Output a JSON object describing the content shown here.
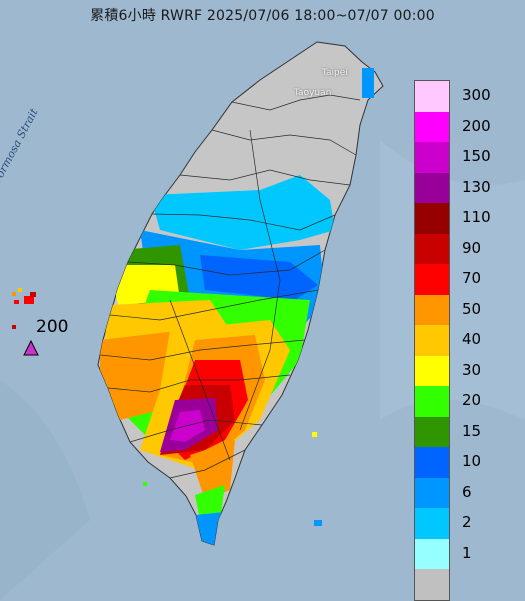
{
  "title": "累積6小時 RWRF 2025/07/06 18:00~07/07 00:00",
  "places": {
    "taipei": "Taipei",
    "taoyuan": "Taoyuan",
    "strait": "Formosa Strait"
  },
  "max_marker": {
    "label": "200",
    "color": "#cc33cc"
  },
  "legend": [
    {
      "label": "300",
      "color": "#ffc8ff"
    },
    {
      "label": "200",
      "color": "#ff00ff"
    },
    {
      "label": "150",
      "color": "#cc00cc"
    },
    {
      "label": "130",
      "color": "#990099"
    },
    {
      "label": "110",
      "color": "#960000"
    },
    {
      "label": "90",
      "color": "#c80000"
    },
    {
      "label": "70",
      "color": "#ff0000"
    },
    {
      "label": "50",
      "color": "#ff9600"
    },
    {
      "label": "40",
      "color": "#ffc800"
    },
    {
      "label": "30",
      "color": "#ffff00"
    },
    {
      "label": "20",
      "color": "#32ff00"
    },
    {
      "label": "15",
      "color": "#2f9600"
    },
    {
      "label": "10",
      "color": "#0064ff"
    },
    {
      "label": "6",
      "color": "#0096ff"
    },
    {
      "label": "2",
      "color": "#00c8ff"
    },
    {
      "label": "1",
      "color": "#96ffff"
    },
    {
      "label": "",
      "color": "#c0c0c0"
    }
  ]
}
